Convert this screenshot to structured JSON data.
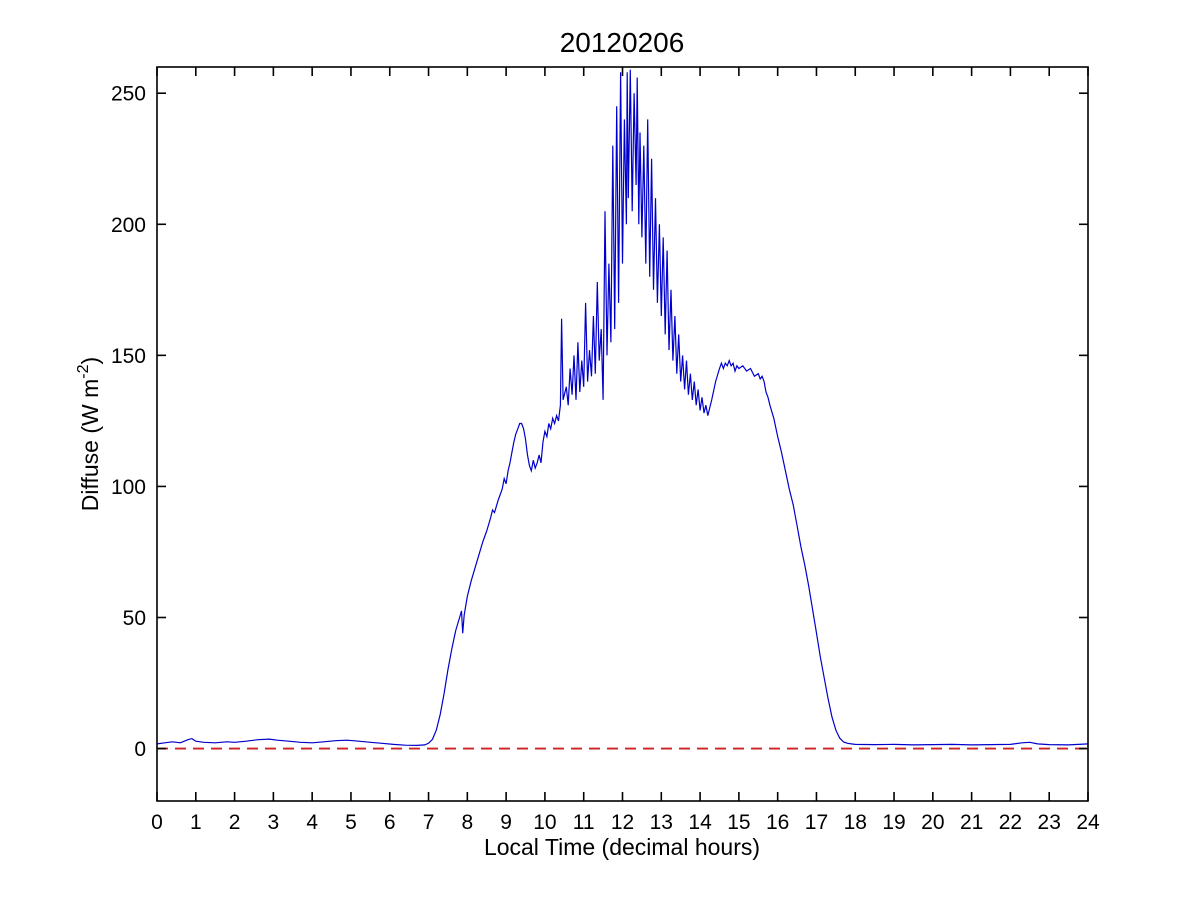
{
  "chart_data": {
    "type": "line",
    "title": "20120206",
    "xlabel": "Local Time (decimal hours)",
    "ylabel": "Diffuse (W m^-2)",
    "ylabel_parts": {
      "pre": "Diffuse (W m",
      "sup": "-2",
      "post": ")"
    },
    "xlim": [
      0,
      24
    ],
    "ylim": [
      -20,
      260
    ],
    "xticks": [
      0,
      1,
      2,
      3,
      4,
      5,
      6,
      7,
      8,
      9,
      10,
      11,
      12,
      13,
      14,
      15,
      16,
      17,
      18,
      19,
      20,
      21,
      22,
      23,
      24
    ],
    "yticks": [
      0,
      50,
      100,
      150,
      200,
      250
    ],
    "grid": false,
    "legend": "none",
    "box": true,
    "tick_direction": "in",
    "colors": {
      "line": "#0000CC",
      "zero_line": "#CC2222",
      "axis": "#000000",
      "background": "#FFFFFF"
    },
    "zero_line": {
      "y": 0,
      "style": "dashed",
      "color": "#CC2222"
    },
    "series": [
      {
        "name": "diffuse",
        "color": "#0000CC",
        "points": [
          [
            0,
            1.8
          ],
          [
            0.2,
            2.2
          ],
          [
            0.4,
            2.6
          ],
          [
            0.6,
            2.2
          ],
          [
            0.8,
            3.4
          ],
          [
            0.9,
            3.8
          ],
          [
            1,
            2.8
          ],
          [
            1.2,
            2.4
          ],
          [
            1.5,
            2.2
          ],
          [
            1.8,
            2.6
          ],
          [
            2,
            2.4
          ],
          [
            2.3,
            2.8
          ],
          [
            2.6,
            3.4
          ],
          [
            2.9,
            3.6
          ],
          [
            3.1,
            3.2
          ],
          [
            3.4,
            2.8
          ],
          [
            3.7,
            2.4
          ],
          [
            4,
            2.2
          ],
          [
            4.3,
            2.6
          ],
          [
            4.6,
            3
          ],
          [
            4.9,
            3.2
          ],
          [
            5.2,
            2.8
          ],
          [
            5.5,
            2.4
          ],
          [
            5.8,
            2
          ],
          [
            6.1,
            1.6
          ],
          [
            6.4,
            1.3
          ],
          [
            6.7,
            1.2
          ],
          [
            6.9,
            1.4
          ],
          [
            7,
            2
          ],
          [
            7.1,
            3.5
          ],
          [
            7.2,
            7
          ],
          [
            7.3,
            13
          ],
          [
            7.4,
            21
          ],
          [
            7.5,
            30
          ],
          [
            7.6,
            38
          ],
          [
            7.7,
            45
          ],
          [
            7.8,
            50
          ],
          [
            7.85,
            52.5
          ],
          [
            7.88,
            44
          ],
          [
            7.92,
            51
          ],
          [
            8,
            58
          ],
          [
            8.1,
            64
          ],
          [
            8.2,
            69
          ],
          [
            8.3,
            74
          ],
          [
            8.4,
            79
          ],
          [
            8.5,
            83
          ],
          [
            8.6,
            88
          ],
          [
            8.65,
            91
          ],
          [
            8.7,
            90
          ],
          [
            8.8,
            95
          ],
          [
            8.9,
            99
          ],
          [
            8.95,
            103
          ],
          [
            9,
            101
          ],
          [
            9.05,
            106
          ],
          [
            9.1,
            109
          ],
          [
            9.15,
            113
          ],
          [
            9.2,
            117
          ],
          [
            9.25,
            120
          ],
          [
            9.3,
            122
          ],
          [
            9.35,
            124
          ],
          [
            9.4,
            124
          ],
          [
            9.45,
            122
          ],
          [
            9.5,
            118
          ],
          [
            9.55,
            112
          ],
          [
            9.6,
            108
          ],
          [
            9.65,
            106
          ],
          [
            9.7,
            110
          ],
          [
            9.75,
            107
          ],
          [
            9.8,
            109
          ],
          [
            9.85,
            112
          ],
          [
            9.9,
            109
          ],
          [
            9.95,
            117
          ],
          [
            10,
            121
          ],
          [
            10.05,
            119
          ],
          [
            10.1,
            124
          ],
          [
            10.15,
            122
          ],
          [
            10.2,
            126
          ],
          [
            10.25,
            124
          ],
          [
            10.3,
            127
          ],
          [
            10.35,
            125
          ],
          [
            10.4,
            131
          ],
          [
            10.43,
            164
          ],
          [
            10.47,
            133
          ],
          [
            10.55,
            138
          ],
          [
            10.6,
            131
          ],
          [
            10.65,
            145
          ],
          [
            10.7,
            135
          ],
          [
            10.75,
            150
          ],
          [
            10.8,
            133
          ],
          [
            10.85,
            155
          ],
          [
            10.9,
            136
          ],
          [
            10.95,
            148
          ],
          [
            11,
            138
          ],
          [
            11.05,
            170
          ],
          [
            11.1,
            140
          ],
          [
            11.15,
            152
          ],
          [
            11.2,
            142
          ],
          [
            11.25,
            165
          ],
          [
            11.3,
            143
          ],
          [
            11.35,
            178
          ],
          [
            11.4,
            148
          ],
          [
            11.45,
            160
          ],
          [
            11.5,
            133
          ],
          [
            11.55,
            205
          ],
          [
            11.6,
            150
          ],
          [
            11.65,
            185
          ],
          [
            11.7,
            155
          ],
          [
            11.75,
            230
          ],
          [
            11.8,
            160
          ],
          [
            11.85,
            245
          ],
          [
            11.9,
            170
          ],
          [
            11.95,
            258
          ],
          [
            12,
            185
          ],
          [
            12.05,
            240
          ],
          [
            12.1,
            200
          ],
          [
            12.12,
            258
          ],
          [
            12.15,
            210
          ],
          [
            12.2,
            259
          ],
          [
            12.25,
            205
          ],
          [
            12.3,
            250
          ],
          [
            12.35,
            215
          ],
          [
            12.38,
            256
          ],
          [
            12.42,
            200
          ],
          [
            12.45,
            235
          ],
          [
            12.5,
            195
          ],
          [
            12.55,
            230
          ],
          [
            12.6,
            185
          ],
          [
            12.65,
            240
          ],
          [
            12.7,
            180
          ],
          [
            12.75,
            225
          ],
          [
            12.8,
            175
          ],
          [
            12.85,
            210
          ],
          [
            12.9,
            170
          ],
          [
            12.95,
            200
          ],
          [
            13,
            165
          ],
          [
            13.05,
            195
          ],
          [
            13.1,
            158
          ],
          [
            13.15,
            190
          ],
          [
            13.2,
            152
          ],
          [
            13.25,
            175
          ],
          [
            13.3,
            148
          ],
          [
            13.35,
            165
          ],
          [
            13.4,
            143
          ],
          [
            13.45,
            158
          ],
          [
            13.5,
            140
          ],
          [
            13.55,
            150
          ],
          [
            13.6,
            137
          ],
          [
            13.65,
            148
          ],
          [
            13.7,
            135
          ],
          [
            13.75,
            143
          ],
          [
            13.8,
            133
          ],
          [
            13.85,
            140
          ],
          [
            13.9,
            131
          ],
          [
            13.95,
            137
          ],
          [
            14,
            129
          ],
          [
            14.05,
            134
          ],
          [
            14.1,
            128
          ],
          [
            14.15,
            131
          ],
          [
            14.2,
            127
          ],
          [
            14.3,
            133
          ],
          [
            14.4,
            140
          ],
          [
            14.5,
            145
          ],
          [
            14.55,
            147
          ],
          [
            14.6,
            145
          ],
          [
            14.65,
            147
          ],
          [
            14.7,
            146
          ],
          [
            14.75,
            148
          ],
          [
            14.8,
            146
          ],
          [
            14.85,
            147
          ],
          [
            14.9,
            144
          ],
          [
            14.95,
            146
          ],
          [
            15,
            145
          ],
          [
            15.1,
            146
          ],
          [
            15.2,
            144
          ],
          [
            15.3,
            145
          ],
          [
            15.4,
            142
          ],
          [
            15.5,
            143
          ],
          [
            15.55,
            141
          ],
          [
            15.6,
            142
          ],
          [
            15.65,
            140
          ],
          [
            15.7,
            136
          ],
          [
            15.75,
            134
          ],
          [
            15.8,
            131
          ],
          [
            15.9,
            126
          ],
          [
            16,
            119
          ],
          [
            16.1,
            113
          ],
          [
            16.2,
            106
          ],
          [
            16.3,
            99
          ],
          [
            16.4,
            93
          ],
          [
            16.5,
            85
          ],
          [
            16.6,
            77
          ],
          [
            16.7,
            70
          ],
          [
            16.8,
            62
          ],
          [
            16.9,
            53
          ],
          [
            17,
            44
          ],
          [
            17.1,
            35
          ],
          [
            17.2,
            27
          ],
          [
            17.3,
            19
          ],
          [
            17.4,
            12
          ],
          [
            17.5,
            7
          ],
          [
            17.6,
            4
          ],
          [
            17.7,
            2.5
          ],
          [
            17.8,
            2
          ],
          [
            17.9,
            1.8
          ],
          [
            18,
            1.6
          ],
          [
            18.5,
            1.5
          ],
          [
            19,
            1.6
          ],
          [
            19.5,
            1.4
          ],
          [
            20,
            1.5
          ],
          [
            20.5,
            1.6
          ],
          [
            21,
            1.4
          ],
          [
            21.5,
            1.5
          ],
          [
            22,
            1.6
          ],
          [
            22.3,
            2.2
          ],
          [
            22.5,
            2.4
          ],
          [
            22.7,
            1.8
          ],
          [
            23,
            1.5
          ],
          [
            23.5,
            1.4
          ],
          [
            24,
            1.8
          ]
        ]
      }
    ]
  }
}
